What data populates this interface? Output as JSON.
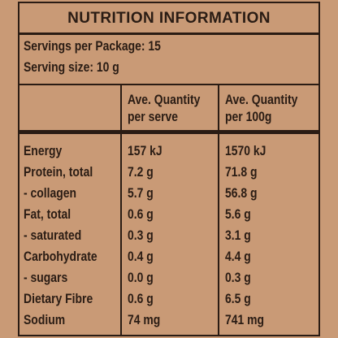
{
  "panel": {
    "title": "NUTRITION INFORMATION",
    "servings_per_package": "Servings per Package: 15",
    "serving_size": "Serving size: 10 g",
    "column_headers": {
      "per_serve_line1": "Ave. Quantity",
      "per_serve_line2": "per serve",
      "per_100g_line1": "Ave. Quantity",
      "per_100g_line2": "per 100g"
    },
    "rows": [
      {
        "nutrient": "Energy",
        "per_serve": "157 kJ",
        "per_100g": "1570 kJ"
      },
      {
        "nutrient": "Protein, total",
        "per_serve": "7.2 g",
        "per_100g": "71.8 g"
      },
      {
        "nutrient": "- collagen",
        "per_serve": "5.7 g",
        "per_100g": "56.8 g"
      },
      {
        "nutrient": "Fat, total",
        "per_serve": "0.6 g",
        "per_100g": "5.6 g"
      },
      {
        "nutrient": "- saturated",
        "per_serve": "0.3 g",
        "per_100g": "3.1 g"
      },
      {
        "nutrient": "Carbohydrate",
        "per_serve": "0.4 g",
        "per_100g": "4.4 g"
      },
      {
        "nutrient": "- sugars",
        "per_serve": "0.0 g",
        "per_100g": "0.3 g"
      },
      {
        "nutrient": "Dietary Fibre",
        "per_serve": "0.6 g",
        "per_100g": "6.5 g"
      },
      {
        "nutrient": "Sodium",
        "per_serve": "74 mg",
        "per_100g": "741 mg"
      }
    ]
  },
  "colors": {
    "background": "#c99a76",
    "ink": "#2a1c14"
  }
}
